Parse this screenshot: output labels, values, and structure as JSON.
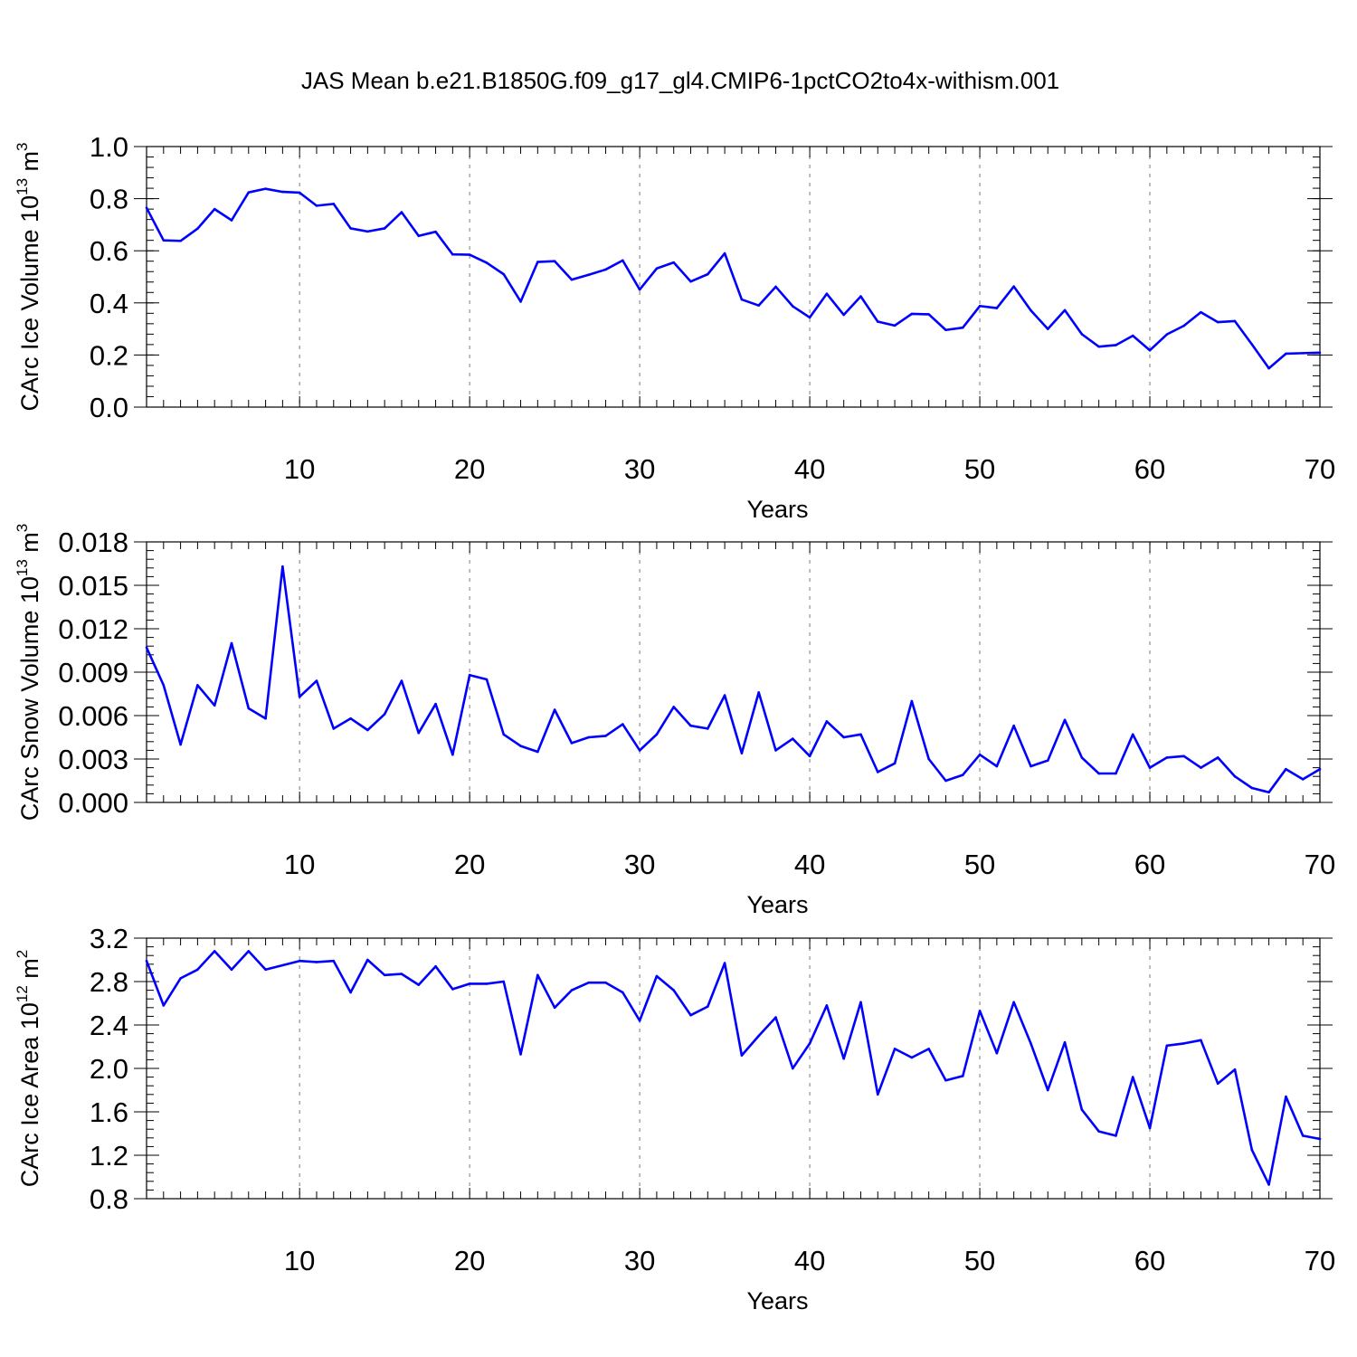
{
  "title": "JAS Mean b.e21.B1850G.f09_g17_gl4.CMIP6-1pctCO2to4x-withism.001",
  "line_color": "#0000ff",
  "chart_data": [
    {
      "type": "line",
      "title": "",
      "xlabel": "Years",
      "ylabel": "CArc Ice Volume 10",
      "ylabel_sup1": "13",
      "ylabel_mid": " m",
      "ylabel_sup2": "3",
      "xlim": [
        1,
        70
      ],
      "ylim": [
        0.0,
        1.0
      ],
      "x_ticks": [
        10,
        20,
        30,
        40,
        50,
        60,
        70
      ],
      "x_tick_labels": [
        "10",
        "20",
        "30",
        "40",
        "50",
        "60",
        "70"
      ],
      "y_ticks": [
        0.0,
        0.2,
        0.4,
        0.6,
        0.8,
        1.0
      ],
      "y_tick_labels": [
        "0.0",
        "0.2",
        "0.4",
        "0.6",
        "0.8",
        "1.0"
      ],
      "y_minor_step": 0.04,
      "grid": "vertical dashed",
      "series": [
        {
          "name": "CArc Ice Volume",
          "color": "#0000ff",
          "values": [
            0.765,
            0.64,
            0.638,
            0.685,
            0.76,
            0.717,
            0.824,
            0.838,
            0.826,
            0.823,
            0.773,
            0.78,
            0.686,
            0.674,
            0.686,
            0.748,
            0.657,
            0.673,
            0.586,
            0.585,
            0.554,
            0.51,
            0.405,
            0.557,
            0.56,
            0.489,
            0.508,
            0.528,
            0.563,
            0.451,
            0.532,
            0.555,
            0.482,
            0.51,
            0.59,
            0.413,
            0.39,
            0.462,
            0.387,
            0.344,
            0.435,
            0.354,
            0.425,
            0.328,
            0.313,
            0.358,
            0.356,
            0.296,
            0.305,
            0.388,
            0.38,
            0.463,
            0.371,
            0.3,
            0.372,
            0.28,
            0.232,
            0.238,
            0.274,
            0.218,
            0.279,
            0.312,
            0.364,
            0.326,
            0.33,
            0.241,
            0.149,
            0.205,
            0.207,
            0.209
          ]
        }
      ]
    },
    {
      "type": "line",
      "title": "",
      "xlabel": "Years",
      "ylabel": "CArc Snow Volume 10",
      "ylabel_sup1": "13",
      "ylabel_mid": " m",
      "ylabel_sup2": "3",
      "xlim": [
        1,
        70
      ],
      "ylim": [
        0.0,
        0.018
      ],
      "x_ticks": [
        10,
        20,
        30,
        40,
        50,
        60,
        70
      ],
      "x_tick_labels": [
        "10",
        "20",
        "30",
        "40",
        "50",
        "60",
        "70"
      ],
      "y_ticks": [
        0.0,
        0.003,
        0.006,
        0.009,
        0.012,
        0.015,
        0.018
      ],
      "y_tick_labels": [
        "0.000",
        "0.003",
        "0.006",
        "0.009",
        "0.012",
        "0.015",
        "0.018"
      ],
      "y_minor_step": 0.0006,
      "grid": "vertical dashed",
      "series": [
        {
          "name": "CArc Snow Volume",
          "color": "#0000ff",
          "values": [
            0.0107,
            0.0081,
            0.004,
            0.0081,
            0.0067,
            0.011,
            0.0065,
            0.0058,
            0.0163,
            0.0073,
            0.0084,
            0.0051,
            0.0058,
            0.005,
            0.0061,
            0.0084,
            0.0048,
            0.0068,
            0.0033,
            0.0088,
            0.0085,
            0.0047,
            0.0039,
            0.0035,
            0.0064,
            0.0041,
            0.0045,
            0.0046,
            0.0054,
            0.0036,
            0.0047,
            0.0066,
            0.0053,
            0.0051,
            0.0074,
            0.0034,
            0.0076,
            0.0036,
            0.0044,
            0.0032,
            0.0056,
            0.0045,
            0.0047,
            0.0021,
            0.0027,
            0.007,
            0.003,
            0.0015,
            0.0019,
            0.0033,
            0.0025,
            0.0053,
            0.0025,
            0.0029,
            0.0057,
            0.0031,
            0.002,
            0.002,
            0.0047,
            0.0024,
            0.0031,
            0.0032,
            0.0024,
            0.0031,
            0.0018,
            0.001,
            0.0007,
            0.0023,
            0.0016,
            0.0023
          ]
        }
      ]
    },
    {
      "type": "line",
      "title": "",
      "xlabel": "Years",
      "ylabel": "CArc Ice Area 10",
      "ylabel_sup1": "12",
      "ylabel_mid": " m",
      "ylabel_sup2": "2",
      "xlim": [
        1,
        70
      ],
      "ylim": [
        0.8,
        3.2
      ],
      "x_ticks": [
        10,
        20,
        30,
        40,
        50,
        60,
        70
      ],
      "x_tick_labels": [
        "10",
        "20",
        "30",
        "40",
        "50",
        "60",
        "70"
      ],
      "y_ticks": [
        0.8,
        1.2,
        1.6,
        2.0,
        2.4,
        2.8,
        3.2
      ],
      "y_tick_labels": [
        "0.8",
        "1.2",
        "1.6",
        "2.0",
        "2.4",
        "2.8",
        "3.2"
      ],
      "y_minor_step": 0.08,
      "grid": "vertical dashed",
      "series": [
        {
          "name": "CArc Ice Area",
          "color": "#0000ff",
          "values": [
            2.99,
            2.58,
            2.83,
            2.91,
            3.08,
            2.91,
            3.08,
            2.91,
            2.95,
            2.99,
            2.98,
            2.99,
            2.7,
            3.0,
            2.86,
            2.87,
            2.77,
            2.94,
            2.73,
            2.78,
            2.78,
            2.8,
            2.13,
            2.86,
            2.56,
            2.72,
            2.79,
            2.79,
            2.7,
            2.44,
            2.85,
            2.72,
            2.49,
            2.57,
            2.97,
            2.12,
            2.3,
            2.47,
            2.0,
            2.23,
            2.58,
            2.09,
            2.61,
            1.76,
            2.18,
            2.1,
            2.18,
            1.89,
            1.93,
            2.53,
            2.14,
            2.61,
            2.23,
            1.8,
            2.24,
            1.62,
            1.42,
            1.38,
            1.92,
            1.45,
            2.21,
            2.23,
            2.26,
            1.86,
            1.99,
            1.25,
            0.93,
            1.74,
            1.38,
            1.35
          ]
        }
      ]
    }
  ]
}
